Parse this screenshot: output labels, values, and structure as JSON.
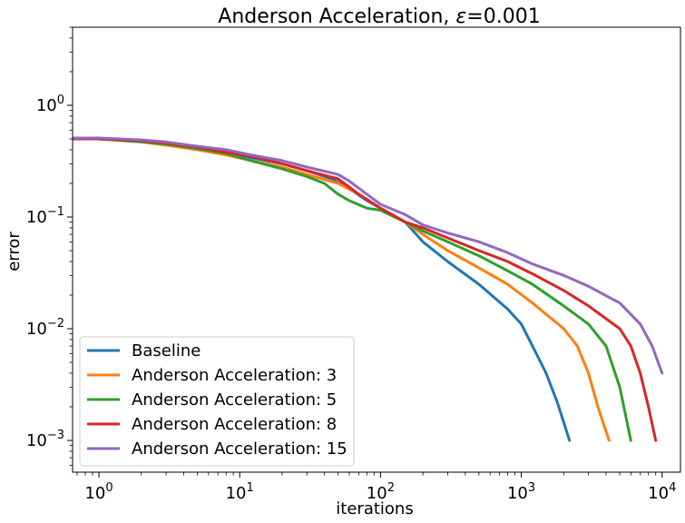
{
  "chart_data": {
    "type": "line",
    "title_main": "Anderson Acceleration, ",
    "title_symbol": "ε",
    "title_value": "=0.001",
    "xlabel": "iterations",
    "ylabel": "error",
    "xscale": "log",
    "yscale": "log",
    "xlim": [
      0.65,
      13500
    ],
    "ylim": [
      0.00052,
      5.0
    ],
    "xticks": [
      {
        "value": 1,
        "base": "10",
        "exp": "0"
      },
      {
        "value": 10,
        "base": "10",
        "exp": "1"
      },
      {
        "value": 100,
        "base": "10",
        "exp": "2"
      },
      {
        "value": 1000,
        "base": "10",
        "exp": "3"
      },
      {
        "value": 10000,
        "base": "10",
        "exp": "4"
      }
    ],
    "yticks": [
      {
        "value": 0.001,
        "base": "10",
        "exp": "−3"
      },
      {
        "value": 0.01,
        "base": "10",
        "exp": "−2"
      },
      {
        "value": 0.1,
        "base": "10",
        "exp": "−1"
      },
      {
        "value": 1,
        "base": "10",
        "exp": "0"
      }
    ],
    "grid": false,
    "legend_position": "lower-left",
    "series": [
      {
        "name": "Baseline",
        "color": "#1f77b4",
        "points": [
          [
            0.6,
            0.5
          ],
          [
            1,
            0.5
          ],
          [
            2,
            0.48
          ],
          [
            3,
            0.46
          ],
          [
            5,
            0.42
          ],
          [
            8,
            0.38
          ],
          [
            12,
            0.34
          ],
          [
            20,
            0.3
          ],
          [
            30,
            0.26
          ],
          [
            45,
            0.22
          ],
          [
            60,
            0.18
          ],
          [
            80,
            0.14
          ],
          [
            100,
            0.12
          ],
          [
            150,
            0.09
          ],
          [
            200,
            0.06
          ],
          [
            300,
            0.04
          ],
          [
            500,
            0.025
          ],
          [
            800,
            0.015
          ],
          [
            1000,
            0.011
          ],
          [
            1200,
            0.007
          ],
          [
            1500,
            0.004
          ],
          [
            1800,
            0.0022
          ],
          [
            2200,
            0.001
          ]
        ]
      },
      {
        "name": "Anderson Acceleration: 3",
        "color": "#ff7f0e",
        "points": [
          [
            0.6,
            0.5
          ],
          [
            1,
            0.5
          ],
          [
            2,
            0.47
          ],
          [
            3,
            0.44
          ],
          [
            5,
            0.4
          ],
          [
            8,
            0.36
          ],
          [
            12,
            0.32
          ],
          [
            20,
            0.28
          ],
          [
            30,
            0.24
          ],
          [
            50,
            0.2
          ],
          [
            70,
            0.16
          ],
          [
            100,
            0.12
          ],
          [
            150,
            0.09
          ],
          [
            200,
            0.07
          ],
          [
            300,
            0.05
          ],
          [
            500,
            0.035
          ],
          [
            800,
            0.025
          ],
          [
            1200,
            0.017
          ],
          [
            2000,
            0.01
          ],
          [
            2500,
            0.007
          ],
          [
            3000,
            0.004
          ],
          [
            3500,
            0.002
          ],
          [
            4200,
            0.001
          ]
        ]
      },
      {
        "name": "Anderson Acceleration: 5",
        "color": "#2ca02c",
        "points": [
          [
            0.6,
            0.5
          ],
          [
            1,
            0.5
          ],
          [
            2,
            0.47
          ],
          [
            3,
            0.45
          ],
          [
            5,
            0.41
          ],
          [
            8,
            0.37
          ],
          [
            12,
            0.32
          ],
          [
            20,
            0.27
          ],
          [
            30,
            0.23
          ],
          [
            40,
            0.2
          ],
          [
            50,
            0.16
          ],
          [
            60,
            0.14
          ],
          [
            80,
            0.12
          ],
          [
            100,
            0.115
          ],
          [
            150,
            0.09
          ],
          [
            200,
            0.075
          ],
          [
            300,
            0.06
          ],
          [
            500,
            0.045
          ],
          [
            800,
            0.033
          ],
          [
            1200,
            0.025
          ],
          [
            2000,
            0.016
          ],
          [
            3000,
            0.011
          ],
          [
            4000,
            0.007
          ],
          [
            5000,
            0.003
          ],
          [
            6000,
            0.001
          ]
        ]
      },
      {
        "name": "Anderson Acceleration: 8",
        "color": "#d62728",
        "points": [
          [
            0.6,
            0.5
          ],
          [
            1,
            0.5
          ],
          [
            2,
            0.48
          ],
          [
            3,
            0.46
          ],
          [
            5,
            0.42
          ],
          [
            8,
            0.38
          ],
          [
            12,
            0.35
          ],
          [
            20,
            0.3
          ],
          [
            30,
            0.26
          ],
          [
            50,
            0.22
          ],
          [
            70,
            0.16
          ],
          [
            100,
            0.12
          ],
          [
            150,
            0.09
          ],
          [
            200,
            0.08
          ],
          [
            300,
            0.065
          ],
          [
            500,
            0.05
          ],
          [
            800,
            0.04
          ],
          [
            1200,
            0.031
          ],
          [
            2000,
            0.022
          ],
          [
            3000,
            0.016
          ],
          [
            5000,
            0.01
          ],
          [
            6000,
            0.007
          ],
          [
            7000,
            0.004
          ],
          [
            8000,
            0.002
          ],
          [
            9000,
            0.001
          ]
        ]
      },
      {
        "name": "Anderson Acceleration: 15",
        "color": "#9467bd",
        "points": [
          [
            0.6,
            0.51
          ],
          [
            1,
            0.51
          ],
          [
            2,
            0.49
          ],
          [
            3,
            0.47
          ],
          [
            5,
            0.43
          ],
          [
            8,
            0.4
          ],
          [
            12,
            0.36
          ],
          [
            20,
            0.32
          ],
          [
            30,
            0.28
          ],
          [
            50,
            0.24
          ],
          [
            60,
            0.21
          ],
          [
            80,
            0.16
          ],
          [
            100,
            0.13
          ],
          [
            150,
            0.105
          ],
          [
            200,
            0.085
          ],
          [
            300,
            0.072
          ],
          [
            500,
            0.06
          ],
          [
            800,
            0.048
          ],
          [
            1200,
            0.038
          ],
          [
            2000,
            0.03
          ],
          [
            3000,
            0.024
          ],
          [
            5000,
            0.017
          ],
          [
            7000,
            0.011
          ],
          [
            8500,
            0.007
          ],
          [
            10000,
            0.004
          ]
        ]
      }
    ]
  }
}
